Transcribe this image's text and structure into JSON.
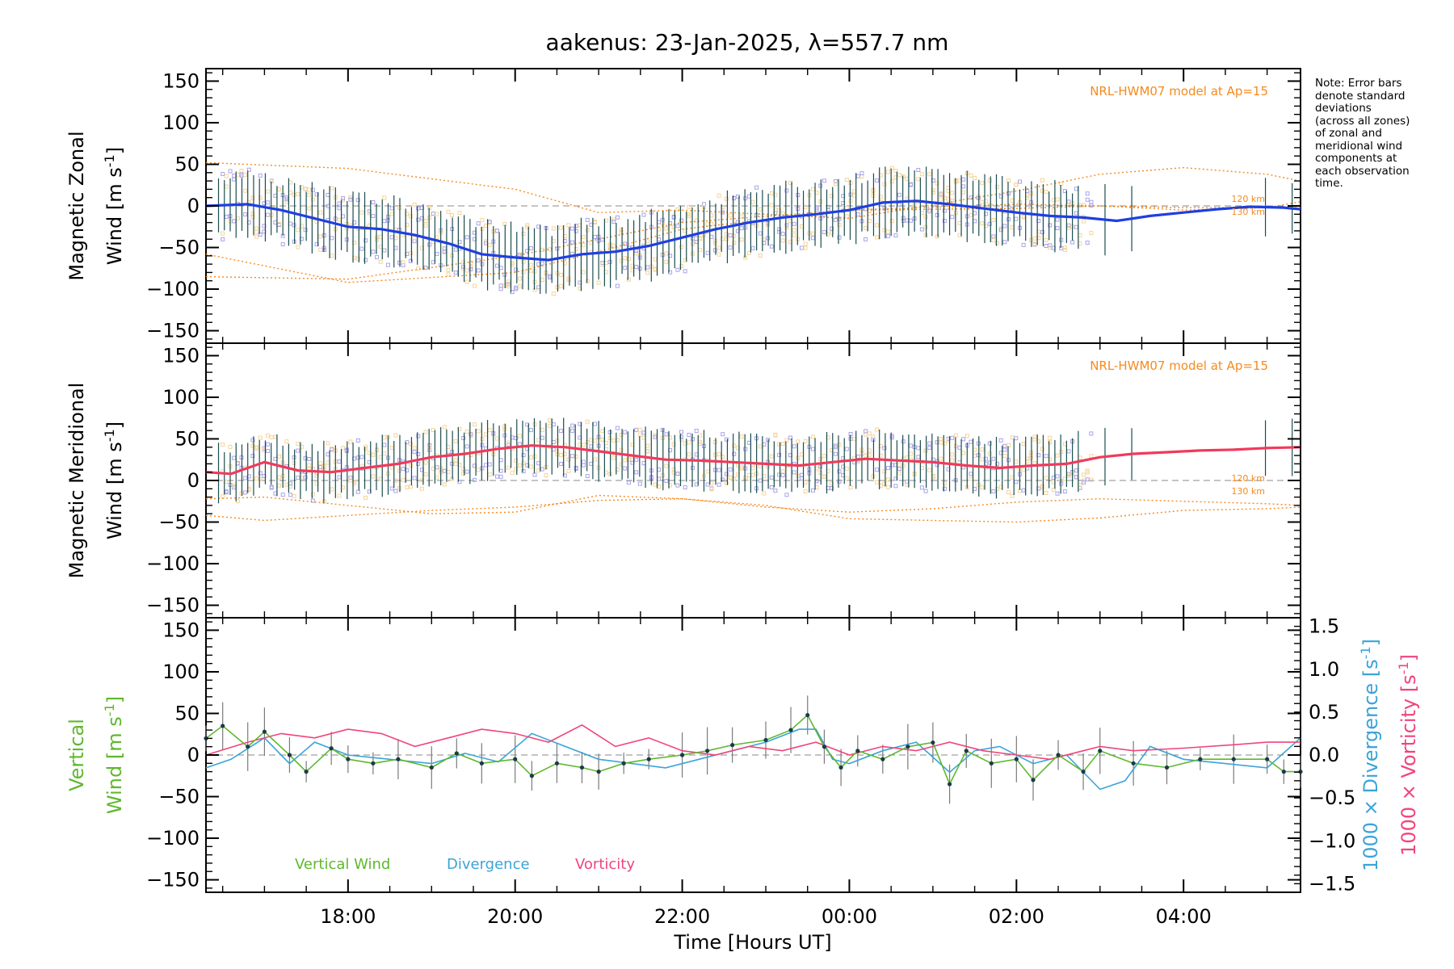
{
  "title": "aakenus: 23-Jan-2025, λ=557.7 nm",
  "note_lines": [
    "Note: Error bars",
    "denote standard",
    "deviations",
    "(across all zones)",
    "of zonal and",
    "meridional wind",
    "components at",
    "each observation",
    "time."
  ],
  "colors": {
    "zonal": "#1f3fe0",
    "zonal_light": "#4aa3d8",
    "meridional": "#f03a5c",
    "model": "#f58a1f",
    "scatter": "#a9a4ea",
    "scatter_tan": "#f6d49a",
    "errbar": "#1b4d4d",
    "vertical": "#5fb82e",
    "divergence": "#3ba4d8",
    "vorticity": "#f0457a",
    "axis": "#000000",
    "zero": "#888888"
  },
  "chart_data": [
    {
      "type": "line",
      "id": "zonal",
      "ylabel_line1": "Magnetic Zonal",
      "ylabel_wind": "Wind",
      "ylabel_units": "[m s",
      "ylabel_exp": "-1",
      "ylabel_close": "]",
      "ylim": [
        -165,
        165
      ],
      "yticks": [
        150,
        100,
        50,
        0,
        -50,
        -100,
        -150
      ],
      "model_label": "NRL-HWM07 model at Ap=15",
      "model_alt_labels": [
        "120 km",
        "130 km"
      ],
      "series": [
        {
          "name": "Zonal wind mean",
          "x": [
            16.3,
            16.8,
            17.2,
            17.6,
            18.0,
            18.4,
            18.8,
            19.2,
            19.6,
            20.0,
            20.4,
            20.8,
            21.2,
            21.6,
            22.0,
            22.4,
            22.8,
            23.2,
            23.6,
            24.0,
            24.4,
            24.8,
            25.2,
            25.6,
            26.0,
            26.4,
            26.8,
            27.2,
            27.6,
            28.0,
            28.4,
            28.8,
            29.2,
            29.4
          ],
          "values": [
            0,
            2,
            -5,
            -15,
            -25,
            -28,
            -35,
            -45,
            -58,
            -62,
            -65,
            -58,
            -55,
            -48,
            -38,
            -28,
            -20,
            -14,
            -10,
            -5,
            4,
            6,
            2,
            -3,
            -8,
            -12,
            -14,
            -18,
            -12,
            -8,
            -4,
            -1,
            -2,
            -4
          ]
        }
      ],
      "model_curves": [
        {
          "name": "model-upper",
          "x": [
            16.3,
            18.0,
            20.0,
            21.0,
            22.0,
            24.0,
            26.0,
            27.0,
            28.0,
            29.0,
            29.4
          ],
          "values": [
            52,
            45,
            20,
            -8,
            -5,
            -15,
            18,
            38,
            46,
            38,
            30
          ]
        },
        {
          "name": "model-lower",
          "x": [
            16.3,
            18.0,
            20.0,
            21.0,
            22.0,
            24.0,
            26.0,
            27.0,
            28.0,
            29.0,
            29.4
          ],
          "values": [
            -58,
            -92,
            -80,
            -55,
            -28,
            -5,
            -3,
            0,
            -5,
            -2,
            5
          ]
        },
        {
          "name": "model-mid",
          "x": [
            16.3,
            18.0,
            20.0,
            22.0,
            24.0,
            26.0,
            28.0,
            29.4
          ],
          "values": [
            -85,
            -88,
            -60,
            -20,
            -5,
            2,
            -2,
            -2
          ]
        }
      ]
    },
    {
      "type": "line",
      "id": "meridional",
      "ylabel_line1": "Magnetic Meridional",
      "ylabel_wind": "Wind",
      "ylabel_units": "[m s",
      "ylabel_exp": "-1",
      "ylabel_close": "]",
      "ylim": [
        -165,
        165
      ],
      "yticks": [
        150,
        100,
        50,
        0,
        -50,
        -100,
        -150
      ],
      "model_label": "NRL-HWM07 model at Ap=15",
      "model_alt_labels": [
        "120 km",
        "130 km"
      ],
      "series": [
        {
          "name": "Meridional wind mean",
          "x": [
            16.3,
            16.6,
            17.0,
            17.4,
            17.8,
            18.2,
            18.6,
            19.0,
            19.4,
            19.8,
            20.2,
            20.6,
            21.0,
            21.4,
            21.8,
            22.2,
            22.6,
            23.0,
            23.4,
            23.8,
            24.2,
            24.6,
            25.0,
            25.4,
            25.8,
            26.2,
            26.6,
            27.0,
            27.4,
            27.8,
            28.2,
            28.6,
            29.0,
            29.4
          ],
          "values": [
            10,
            8,
            22,
            12,
            10,
            15,
            20,
            28,
            32,
            38,
            42,
            40,
            35,
            30,
            25,
            24,
            22,
            20,
            18,
            22,
            26,
            24,
            22,
            18,
            15,
            18,
            20,
            28,
            32,
            34,
            36,
            37,
            39,
            40
          ]
        }
      ],
      "model_curves": [
        {
          "name": "model-lower",
          "x": [
            16.3,
            17.0,
            18.0,
            19.0,
            20.0,
            21.0,
            22.0,
            23.0,
            24.0,
            25.0,
            26.0,
            27.0,
            28.0,
            29.0,
            29.4
          ],
          "values": [
            -42,
            -48,
            -42,
            -36,
            -32,
            -24,
            -22,
            -30,
            -46,
            -48,
            -50,
            -45,
            -36,
            -34,
            -32
          ]
        },
        {
          "name": "model-upper",
          "x": [
            16.3,
            17.0,
            18.0,
            19.0,
            20.0,
            21.0,
            22.0,
            23.0,
            24.0,
            25.0,
            26.0,
            27.0,
            28.0,
            29.0,
            29.4
          ],
          "values": [
            -22,
            -20,
            -30,
            -40,
            -38,
            -18,
            -22,
            -32,
            -38,
            -34,
            -26,
            -22,
            -25,
            -28,
            -30
          ]
        }
      ]
    },
    {
      "type": "line",
      "id": "vertical",
      "ylabel_line1": "Vertical",
      "ylabel_wind": "Wind",
      "ylabel_units": "[m s",
      "ylabel_exp": "-1",
      "ylabel_close": "]",
      "ylim": [
        -165,
        165
      ],
      "yticks": [
        150,
        100,
        50,
        0,
        -50,
        -100,
        -150
      ],
      "y2lim": [
        -1.6,
        1.6
      ],
      "y2ticks": [
        1.5,
        1.0,
        0.5,
        0.0,
        -0.5,
        -1.0,
        -1.5
      ],
      "y2tick_labels": [
        "1.5",
        "1.0",
        "0.5",
        "0.0",
        "−0.5",
        "−1.0",
        "−1.5"
      ],
      "y2label_divergence": "1000 × Divergence [s",
      "y2label_vorticity": "1000 × Vorticity [s",
      "y2label_exp": "-1",
      "y2label_close": "]",
      "legend": [
        "Vertical Wind",
        "Divergence",
        "Vorticity"
      ],
      "series": [
        {
          "name": "Vertical Wind",
          "x": [
            16.3,
            16.5,
            16.8,
            17.0,
            17.3,
            17.5,
            17.8,
            18.0,
            18.3,
            18.6,
            19.0,
            19.3,
            19.6,
            20.0,
            20.2,
            20.5,
            20.8,
            21.0,
            21.3,
            21.6,
            22.0,
            22.3,
            22.6,
            23.0,
            23.3,
            23.5,
            23.7,
            23.9,
            24.1,
            24.4,
            24.7,
            25.0,
            25.2,
            25.4,
            25.7,
            26.0,
            26.2,
            26.5,
            26.8,
            27.0,
            27.4,
            27.8,
            28.2,
            28.6,
            29.0,
            29.2,
            29.4
          ],
          "values": [
            20,
            35,
            10,
            28,
            0,
            -20,
            8,
            -5,
            -10,
            -5,
            -15,
            2,
            -10,
            -5,
            -25,
            -10,
            -15,
            -20,
            -10,
            -5,
            0,
            5,
            12,
            18,
            30,
            48,
            10,
            -15,
            5,
            -5,
            10,
            15,
            -35,
            5,
            -10,
            -5,
            -30,
            0,
            -20,
            5,
            -10,
            -15,
            -5,
            -5,
            -5,
            -20,
            -20
          ]
        },
        {
          "name": "Divergence",
          "axis": "y2",
          "x": [
            16.3,
            16.6,
            17.0,
            17.3,
            17.6,
            18.0,
            18.5,
            19.0,
            19.4,
            19.8,
            20.2,
            20.6,
            21.0,
            21.4,
            21.8,
            22.2,
            22.6,
            23.0,
            23.4,
            23.6,
            23.8,
            24.0,
            24.4,
            24.8,
            25.2,
            25.5,
            25.8,
            26.2,
            26.6,
            27.0,
            27.3,
            27.6,
            28.0,
            28.5,
            29.0,
            29.4
          ],
          "values": [
            -0.15,
            -0.05,
            0.2,
            -0.1,
            0.15,
            0.0,
            -0.05,
            -0.1,
            0.02,
            -0.08,
            0.25,
            0.1,
            -0.05,
            -0.1,
            -0.15,
            -0.05,
            0.05,
            0.15,
            0.3,
            0.3,
            -0.05,
            -0.1,
            0.05,
            0.15,
            -0.2,
            0.05,
            0.1,
            -0.1,
            0.0,
            -0.4,
            -0.3,
            0.1,
            -0.05,
            -0.1,
            -0.15,
            0.2
          ]
        },
        {
          "name": "Vorticity",
          "axis": "y2",
          "x": [
            16.3,
            16.8,
            17.2,
            17.6,
            18.0,
            18.4,
            18.8,
            19.2,
            19.6,
            20.0,
            20.4,
            20.8,
            21.2,
            21.6,
            22.0,
            22.4,
            22.8,
            23.2,
            23.6,
            24.0,
            24.4,
            24.8,
            25.2,
            25.6,
            26.0,
            26.4,
            26.8,
            27.0,
            27.4,
            28.0,
            28.6,
            29.0,
            29.4
          ],
          "values": [
            0.0,
            0.15,
            0.25,
            0.2,
            0.3,
            0.25,
            0.1,
            0.2,
            0.3,
            0.25,
            0.15,
            0.35,
            0.1,
            0.2,
            0.05,
            0.0,
            0.1,
            0.05,
            0.15,
            0.0,
            0.1,
            0.05,
            0.15,
            0.05,
            0.0,
            -0.05,
            0.05,
            0.1,
            0.05,
            0.08,
            0.12,
            0.15,
            0.15
          ]
        }
      ]
    }
  ],
  "x_axis": {
    "label": "Time [Hours UT]",
    "xlim": [
      16.3,
      29.4
    ],
    "ticks": [
      18,
      20,
      22,
      24,
      26,
      28
    ],
    "tick_labels": [
      "18:00",
      "20:00",
      "22:00",
      "00:00",
      "02:00",
      "04:00"
    ]
  }
}
